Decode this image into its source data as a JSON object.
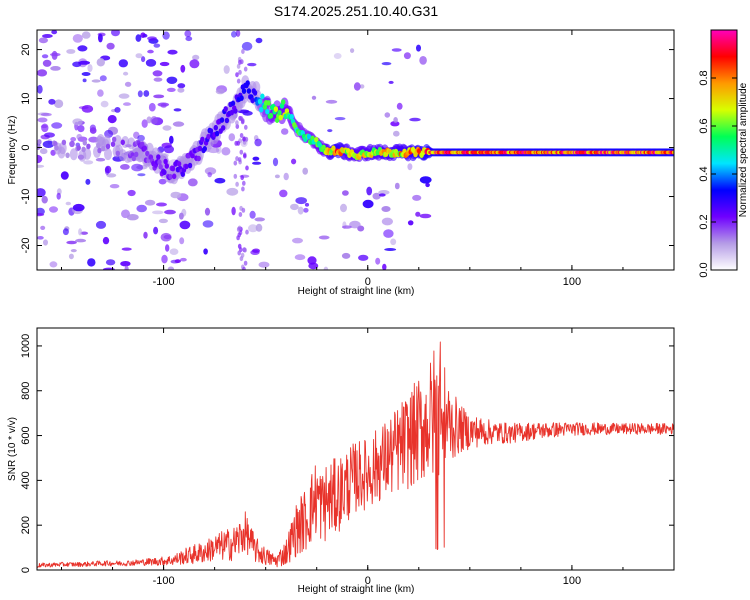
{
  "figure_title": "S174.2025.251.10.40.G31",
  "chart_data": [
    {
      "type": "heatmap",
      "title": "S174.2025.251.10.40.G31",
      "xlabel": "Height of straight line (km)",
      "ylabel": "Frequency (Hz)",
      "xlim": [
        -162,
        150
      ],
      "ylim": [
        -25,
        24
      ],
      "x_ticks": [
        -100,
        0,
        100
      ],
      "y_ticks": [
        -20,
        -10,
        0,
        10,
        20
      ],
      "colorbar": {
        "label": "Normalized spectral amplitude",
        "range": [
          0,
          1
        ],
        "ticks": [
          0.0,
          0.2,
          0.4,
          0.6,
          0.8
        ],
        "colors": [
          "#ffffff",
          "#b59ce6",
          "#6f00ff",
          "#0000ff",
          "#00e5ff",
          "#00ff55",
          "#d8ff00",
          "#ff9900",
          "#ff0000",
          "#ff00bb"
        ]
      },
      "ridge": {
        "x": [
          -162,
          -150,
          -140,
          -130,
          -120,
          -110,
          -100,
          -95,
          -90,
          -85,
          -80,
          -75,
          -70,
          -65,
          -60,
          -55,
          -50,
          -45,
          -40,
          -35,
          -30,
          -25,
          -20,
          -15,
          -10,
          -5,
          0,
          10,
          20,
          25,
          30,
          40,
          60,
          80,
          100,
          120,
          150
        ],
        "y": [
          0,
          0,
          0,
          0,
          0,
          -1,
          -4,
          -5,
          -4,
          -2,
          1,
          3,
          6,
          8,
          12,
          11,
          8,
          7,
          8,
          4,
          2,
          1,
          -1,
          -0.5,
          -1,
          -1.5,
          -1,
          -1,
          -1,
          -1,
          -1,
          -1,
          -1,
          -1,
          -1,
          -1,
          -1
        ],
        "amplitude": [
          0.15,
          0.15,
          0.15,
          0.15,
          0.18,
          0.2,
          0.22,
          0.25,
          0.25,
          0.25,
          0.28,
          0.28,
          0.3,
          0.3,
          0.32,
          0.32,
          0.55,
          0.62,
          0.65,
          0.55,
          0.55,
          0.6,
          0.72,
          0.85,
          0.72,
          0.7,
          0.72,
          0.75,
          0.78,
          0.85,
          0.88,
          0.9,
          0.9,
          0.9,
          0.9,
          0.9,
          0.9
        ]
      }
    },
    {
      "type": "line",
      "xlabel": "Height of straight line (km)",
      "ylabel": "SNR (10 * v/v)",
      "xlim": [
        -162,
        150
      ],
      "ylim": [
        0,
        1080
      ],
      "x_ticks": [
        -100,
        0,
        100
      ],
      "y_ticks": [
        0,
        200,
        400,
        600,
        800,
        1000
      ],
      "series": [
        {
          "name": "SNR",
          "color": "#e8332b",
          "x": [
            -162,
            -150,
            -140,
            -130,
            -120,
            -110,
            -100,
            -95,
            -90,
            -85,
            -80,
            -75,
            -70,
            -65,
            -62,
            -60,
            -55,
            -50,
            -45,
            -40,
            -35,
            -30,
            -25,
            -22,
            -20,
            -15,
            -10,
            -5,
            0,
            5,
            10,
            15,
            20,
            25,
            30,
            33,
            35,
            37,
            40,
            45,
            50,
            60,
            70,
            80,
            90,
            100,
            110,
            120,
            130,
            140,
            150
          ],
          "y": [
            20,
            25,
            25,
            30,
            30,
            35,
            40,
            45,
            60,
            70,
            80,
            100,
            110,
            120,
            150,
            170,
            90,
            60,
            40,
            80,
            180,
            230,
            330,
            280,
            310,
            330,
            380,
            420,
            430,
            470,
            500,
            540,
            580,
            620,
            660,
            700,
            720,
            700,
            650,
            630,
            620,
            615,
            610,
            620,
            625,
            630,
            630,
            630,
            630,
            630,
            630
          ],
          "spread": [
            10,
            10,
            10,
            12,
            12,
            15,
            20,
            25,
            35,
            45,
            50,
            60,
            70,
            80,
            95,
            90,
            60,
            40,
            30,
            60,
            120,
            150,
            180,
            170,
            180,
            170,
            170,
            160,
            160,
            170,
            180,
            200,
            220,
            240,
            260,
            330,
            300,
            260,
            180,
            110,
            80,
            55,
            45,
            40,
            35,
            30,
            28,
            25,
            25,
            25,
            25
          ]
        }
      ]
    }
  ]
}
